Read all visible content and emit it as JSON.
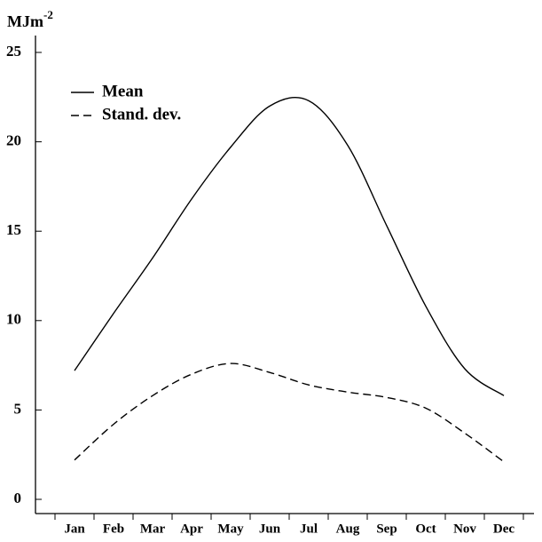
{
  "chart_data": {
    "type": "line",
    "y_label": "MJm",
    "y_label_exponent": "-2",
    "categories": [
      "Jan",
      "Feb",
      "Mar",
      "Apr",
      "May",
      "Jun",
      "Jul",
      "Aug",
      "Sep",
      "Oct",
      "Nov",
      "Dec"
    ],
    "series": [
      {
        "name": "Mean",
        "color": "#000000",
        "dash": false,
        "values": [
          7.2,
          10.4,
          13.5,
          16.8,
          19.7,
          22.0,
          22.3,
          19.8,
          15.3,
          10.8,
          7.3,
          5.8
        ]
      },
      {
        "name": "Stand. dev.",
        "color": "#000000",
        "dash": true,
        "values": [
          2.2,
          4.2,
          5.8,
          7.0,
          7.6,
          7.1,
          6.4,
          6.0,
          5.7,
          5.1,
          3.7,
          2.1
        ]
      }
    ],
    "ylim": [
      0,
      25
    ],
    "yticks": [
      0,
      5,
      10,
      15,
      20,
      25
    ],
    "grid": false
  }
}
